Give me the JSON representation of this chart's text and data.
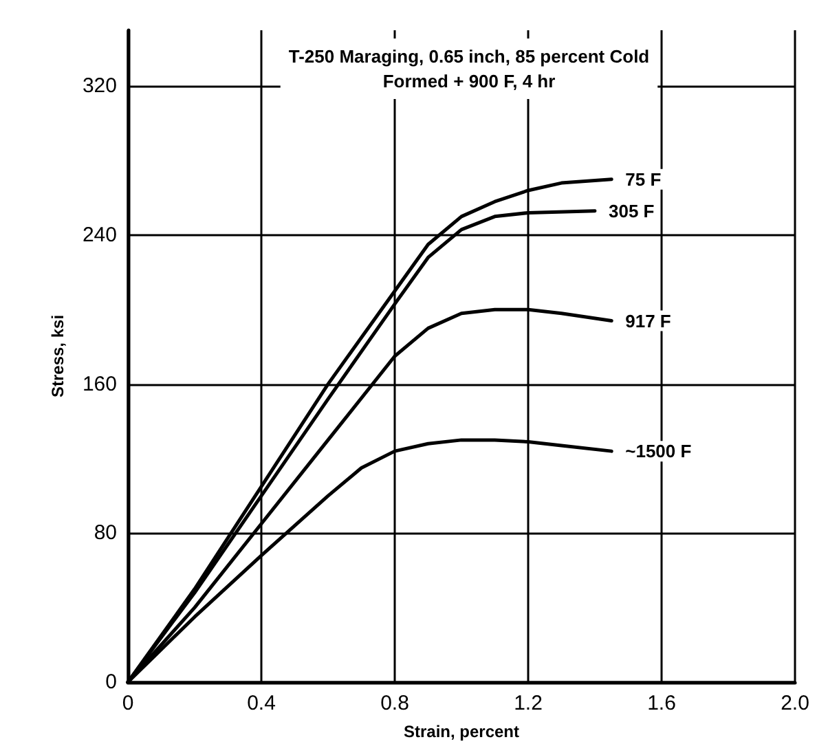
{
  "chart_data": {
    "type": "line",
    "title": "T-250 Maraging, 0.65 inch, 85 percent Cold\nFormed + 900 F, 4 hr",
    "xlabel": "Strain, percent",
    "ylabel": "Stress, ksi",
    "series": [
      {
        "name": "75 F",
        "color": "#000000",
        "x": [
          0,
          0.2,
          0.4,
          0.6,
          0.8,
          0.9,
          1.0,
          1.1,
          1.2,
          1.3,
          1.45
        ],
        "values": [
          0,
          50,
          105,
          160,
          210,
          235,
          250,
          258,
          264,
          268,
          270
        ]
      },
      {
        "name": "305 F",
        "color": "#000000",
        "x": [
          0,
          0.2,
          0.4,
          0.6,
          0.8,
          0.9,
          1.0,
          1.1,
          1.2,
          1.4
        ],
        "values": [
          0,
          48,
          100,
          152,
          203,
          228,
          243,
          250,
          252,
          253
        ]
      },
      {
        "name": "917 F",
        "color": "#000000",
        "x": [
          0,
          0.2,
          0.4,
          0.6,
          0.8,
          0.9,
          1.0,
          1.1,
          1.2,
          1.3,
          1.45
        ],
        "values": [
          0,
          40,
          85,
          130,
          175,
          190,
          198,
          200,
          200,
          198,
          194
        ]
      },
      {
        "name": "~1500 F",
        "color": "#000000",
        "x": [
          0,
          0.2,
          0.4,
          0.6,
          0.7,
          0.8,
          0.9,
          1.0,
          1.1,
          1.2,
          1.3,
          1.45
        ],
        "values": [
          0,
          35,
          68,
          100,
          115,
          124,
          128,
          130,
          130,
          129,
          127,
          124
        ]
      }
    ],
    "xlim": [
      0,
      2
    ],
    "xticks": [
      0,
      0.4,
      0.8,
      1.2,
      1.6,
      {
        "value": 2,
        "label": "2.0"
      }
    ],
    "ylim": [
      0,
      350
    ],
    "yticks": [
      0,
      80,
      160,
      240,
      320
    ],
    "grid": true,
    "legend": false,
    "marker": "none",
    "line_style": "solid"
  }
}
